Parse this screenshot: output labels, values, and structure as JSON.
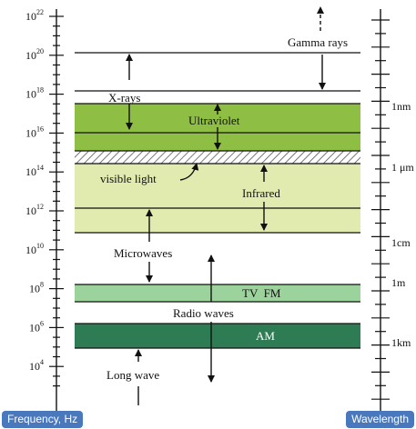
{
  "frequency_axis": {
    "label": "Frequency, Hz",
    "ticks": [
      {
        "base": "10",
        "exp": "22"
      },
      {
        "base": "10",
        "exp": "20"
      },
      {
        "base": "10",
        "exp": "18"
      },
      {
        "base": "10",
        "exp": "16"
      },
      {
        "base": "10",
        "exp": "14"
      },
      {
        "base": "10",
        "exp": "12"
      },
      {
        "base": "10",
        "exp": "10"
      },
      {
        "base": "10",
        "exp": "8"
      },
      {
        "base": "10",
        "exp": "6"
      },
      {
        "base": "10",
        "exp": "4"
      }
    ]
  },
  "wavelength_axis": {
    "label": "Wavelength",
    "ticks": [
      "1nm",
      "1 μm",
      "1cm",
      "1m",
      "1km"
    ]
  },
  "regions": {
    "gamma": "Gamma rays",
    "xrays": "X-rays",
    "ultraviolet": "Ultraviolet",
    "visible": "visible light",
    "infrared": "Infrared",
    "microwaves": "Microwaves",
    "tvfm": "TV  FM",
    "radio": "Radio waves",
    "am": "AM",
    "longwave": "Long wave"
  },
  "colors": {
    "uv_band": "#8ebf44",
    "ir_band": "#e1ebb0",
    "tvfm_band": "#9cd39c",
    "am_band": "#2e7c54",
    "badge": "#4a78bd"
  }
}
